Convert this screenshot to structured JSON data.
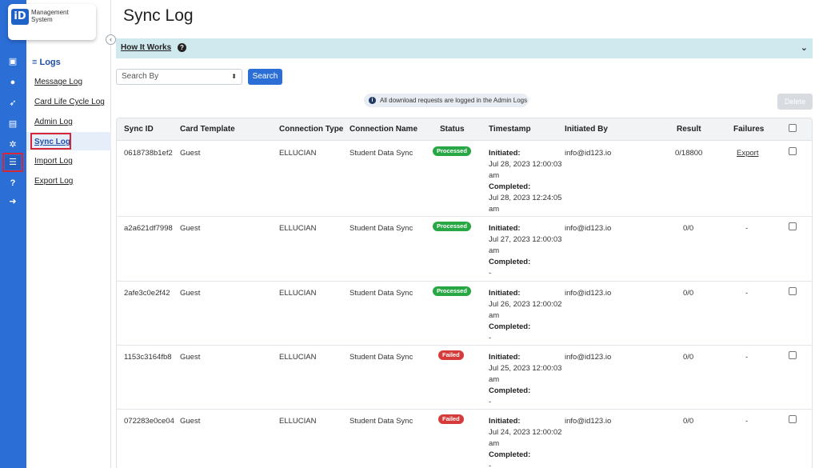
{
  "app": {
    "logo_badge": "iD",
    "logo_line1": "Management",
    "logo_line2": "System"
  },
  "rail_icons": [
    "id-card-icon",
    "chat-icon",
    "rocket-icon",
    "document-icon",
    "gear-icon",
    "list-icon",
    "help-icon",
    "logout-icon"
  ],
  "subnav": {
    "title": "≡ Logs",
    "items": [
      {
        "label": "Message Log",
        "active": false
      },
      {
        "label": "Card Life Cycle Log",
        "active": false
      },
      {
        "label": "Admin Log",
        "active": false
      },
      {
        "label": "Sync Log",
        "active": true
      },
      {
        "label": "Import Log",
        "active": false
      },
      {
        "label": "Export Log",
        "active": false
      }
    ]
  },
  "page": {
    "title": "Sync Log",
    "how_it_works": "How It Works",
    "search_select_value": "Search By",
    "search_button": "Search",
    "info_text": "All download requests are logged in the Admin Logs",
    "delete_button": "Delete"
  },
  "table": {
    "headers": [
      "Sync ID",
      "Card Template",
      "Connection Type",
      "Connection Name",
      "Status",
      "Timestamp",
      "Initiated By",
      "Result",
      "Failures"
    ],
    "initiated_label": "Initiated:",
    "completed_label": "Completed:",
    "rows": [
      {
        "sync_id": "0618738b1ef2",
        "card_template": "Guest",
        "connection_type": "ELLUCIAN",
        "connection_name": "Student Data Sync",
        "status": "Processed",
        "status_kind": "processed",
        "initiated": "Jul 28, 2023 12:00:03 am",
        "completed": "Jul 28, 2023 12:24:05 am",
        "initiated_by": "info@id123.io",
        "result": "0/18800",
        "failures": "Export"
      },
      {
        "sync_id": "a2a621df7998",
        "card_template": "Guest",
        "connection_type": "ELLUCIAN",
        "connection_name": "Student Data Sync",
        "status": "Processed",
        "status_kind": "processed",
        "initiated": "Jul 27, 2023 12:00:03 am",
        "completed": "-",
        "initiated_by": "info@id123.io",
        "result": "0/0",
        "failures": "-"
      },
      {
        "sync_id": "2afe3c0e2f42",
        "card_template": "Guest",
        "connection_type": "ELLUCIAN",
        "connection_name": "Student Data Sync",
        "status": "Processed",
        "status_kind": "processed",
        "initiated": "Jul 26, 2023 12:00:02 am",
        "completed": "-",
        "initiated_by": "info@id123.io",
        "result": "0/0",
        "failures": "-"
      },
      {
        "sync_id": "1153c3164fb8",
        "card_template": "Guest",
        "connection_type": "ELLUCIAN",
        "connection_name": "Student Data Sync",
        "status": "Failed",
        "status_kind": "failed",
        "initiated": "Jul 25, 2023 12:00:03 am",
        "completed": "-",
        "initiated_by": "info@id123.io",
        "result": "0/0",
        "failures": "-"
      },
      {
        "sync_id": "072283e0ce04",
        "card_template": "Guest",
        "connection_type": "ELLUCIAN",
        "connection_name": "Student Data Sync",
        "status": "Failed",
        "status_kind": "failed",
        "initiated": "Jul 24, 2023 12:00:02 am",
        "completed": "-",
        "initiated_by": "info@id123.io",
        "result": "0/0",
        "failures": "-"
      }
    ]
  }
}
